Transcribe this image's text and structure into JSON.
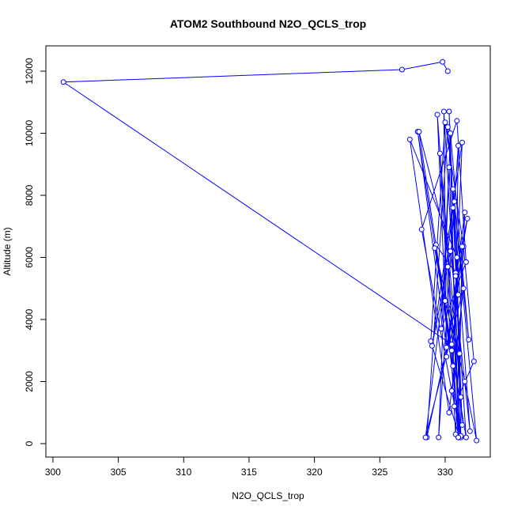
{
  "chart_data": {
    "type": "line",
    "title": "ATOM2 Southbound N2O_QCLS_trop",
    "x_label": "N2O_QCLS_trop",
    "y_label": "Altitude (m)",
    "x": [
      330.2,
      329.8,
      326.7,
      300.8,
      330.5,
      331.0,
      330.3,
      331.2,
      329.6,
      330.8,
      331.5,
      330.1,
      329.9,
      331.3,
      330.6,
      331.8,
      330.4,
      329.5,
      331.0,
      330.7,
      332.2,
      331.4,
      330.0,
      328.9,
      331.1,
      330.3,
      329.7,
      331.6,
      330.9,
      328.2,
      330.5,
      331.2,
      329.3,
      330.8,
      331.7,
      330.1,
      327.9,
      330.6,
      331.3,
      329.0,
      330.4,
      331.9,
      330.2,
      328.6,
      331.0,
      330.7,
      332.4,
      331.5,
      330.0,
      329.4,
      331.2,
      330.9,
      327.3,
      330.3,
      331.4,
      328.5,
      330.6,
      331.1,
      329.2,
      331.6,
      330.8,
      328.0,
      330.5,
      331.3,
      331.0,
      330.2
    ],
    "series": [
      {
        "color": "#0000ff",
        "values": [
          12000,
          12300,
          12050,
          11650,
          3200,
          200,
          10700,
          1500,
          9350,
          300,
          7450,
          2800,
          10700,
          600,
          8200,
          3350,
          10000,
          200,
          9600,
          1200,
          2650,
          6350,
          10350,
          3300,
          200,
          8900,
          3700,
          5850,
          10400,
          6900,
          1700,
          200,
          6400,
          5500,
          7250,
          3100,
          10050,
          2500,
          9700,
          3150,
          6200,
          400,
          10200,
          200,
          4800,
          7800,
          100,
          2000,
          4600,
          10600,
          250,
          6000,
          9800,
          1000,
          5000,
          200,
          7600,
          2900,
          6300,
          200,
          5400,
          10050,
          3000,
          6350,
          200,
          5700
        ]
      }
    ],
    "xlim": [
      299.46,
      333.45
    ],
    "ylim": [
      -433,
      12815
    ],
    "xticks": [
      300,
      305,
      310,
      315,
      320,
      325,
      330
    ],
    "yticks": [
      0,
      2000,
      4000,
      6000,
      8000,
      10000,
      12000
    ]
  }
}
